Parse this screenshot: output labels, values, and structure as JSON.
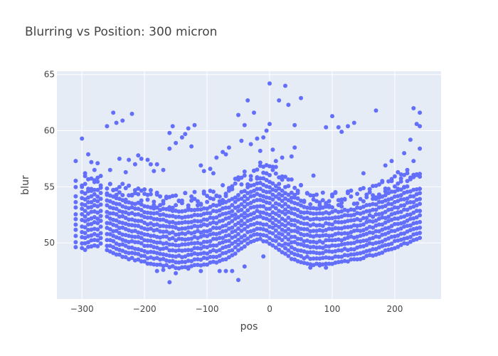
{
  "chart_data": {
    "type": "scatter",
    "title": "Blurring vs Position: 300 micron",
    "xlabel": "pos",
    "ylabel": "blur",
    "xlim": [
      -340,
      274
    ],
    "ylim": [
      45,
      65.3
    ],
    "x_ticks": [
      -300,
      -200,
      -100,
      0,
      100,
      200
    ],
    "x_tick_labels": [
      "−300",
      "−200",
      "−100",
      "0",
      "100",
      "200"
    ],
    "y_ticks": [
      50,
      55,
      60,
      65
    ],
    "y_tick_labels": [
      "50",
      "55",
      "60",
      "65"
    ],
    "grid": true,
    "legend": "none",
    "colors": {
      "marker": "#636efa",
      "plot_bg": "#e5ecf6",
      "grid": "#ffffff"
    },
    "x_positions": [
      -310,
      -300,
      -295,
      -290,
      -285,
      -280,
      -275,
      -270,
      -260,
      -255,
      -250,
      -245,
      -240,
      -235,
      -230,
      -225,
      -220,
      -215,
      -210,
      -205,
      -200,
      -195,
      -190,
      -185,
      -180,
      -175,
      -170,
      -165,
      -160,
      -155,
      -150,
      -145,
      -140,
      -135,
      -130,
      -125,
      -120,
      -115,
      -110,
      -105,
      -100,
      -95,
      -90,
      -85,
      -80,
      -75,
      -70,
      -65,
      -60,
      -55,
      -50,
      -45,
      -40,
      -35,
      -30,
      -25,
      -20,
      -15,
      -10,
      -5,
      0,
      5,
      10,
      15,
      20,
      25,
      30,
      35,
      40,
      45,
      50,
      55,
      60,
      65,
      70,
      75,
      80,
      85,
      90,
      95,
      100,
      105,
      110,
      115,
      120,
      125,
      130,
      135,
      140,
      145,
      150,
      155,
      160,
      165,
      170,
      175,
      180,
      185,
      190,
      195,
      200,
      205,
      210,
      215,
      220,
      225,
      230,
      235,
      240
    ],
    "band_low": [
      49.6,
      49.5,
      49.4,
      49.6,
      49.7,
      49.8,
      49.7,
      49.9,
      49.3,
      49.2,
      49.1,
      49.0,
      48.9,
      48.8,
      48.7,
      48.6,
      48.6,
      48.5,
      48.5,
      48.4,
      48.3,
      48.2,
      48.2,
      48.1,
      48.1,
      48.0,
      48.0,
      48.0,
      47.9,
      47.9,
      47.8,
      47.8,
      47.8,
      47.8,
      47.9,
      47.9,
      48.0,
      48.0,
      48.0,
      48.1,
      48.1,
      48.2,
      48.3,
      48.3,
      48.4,
      48.5,
      48.6,
      48.7,
      48.9,
      49.1,
      49.3,
      49.5,
      49.7,
      49.9,
      50.1,
      50.2,
      50.3,
      50.3,
      50.2,
      50.1,
      50.0,
      49.8,
      49.6,
      49.4,
      49.2,
      49.0,
      48.8,
      48.6,
      48.5,
      48.4,
      48.3,
      48.2,
      48.2,
      48.1,
      48.1,
      48.1,
      48.1,
      48.1,
      48.2,
      48.2,
      48.2,
      48.3,
      48.3,
      48.3,
      48.4,
      48.4,
      48.5,
      48.5,
      48.6,
      48.6,
      48.7,
      48.8,
      48.9,
      48.9,
      49.0,
      49.1,
      49.2,
      49.3,
      49.4,
      49.5,
      49.6,
      49.7,
      49.8,
      49.9,
      50.0,
      50.1,
      50.2,
      50.3,
      50.4
    ],
    "band_high": [
      54.5,
      54.6,
      54.6,
      54.7,
      54.8,
      54.8,
      54.9,
      55.0,
      54.4,
      54.3,
      54.2,
      54.1,
      54.0,
      53.9,
      53.8,
      53.8,
      53.7,
      53.6,
      53.6,
      53.5,
      53.5,
      53.4,
      53.4,
      53.3,
      53.3,
      53.2,
      53.2,
      53.2,
      53.1,
      53.1,
      53.1,
      53.1,
      53.1,
      53.1,
      53.1,
      53.1,
      53.2,
      53.2,
      53.3,
      53.3,
      53.4,
      53.4,
      53.5,
      53.6,
      53.7,
      53.8,
      53.9,
      54.0,
      54.2,
      54.4,
      54.6,
      54.8,
      55.0,
      55.2,
      55.4,
      55.6,
      55.8,
      55.9,
      56.0,
      55.9,
      55.8,
      55.6,
      55.4,
      55.2,
      55.0,
      54.8,
      54.6,
      54.4,
      54.2,
      54.0,
      53.8,
      53.6,
      53.5,
      53.4,
      53.3,
      53.2,
      53.2,
      53.2,
      53.2,
      53.2,
      53.2,
      53.2,
      53.2,
      53.3,
      53.3,
      53.3,
      53.4,
      53.4,
      53.5,
      53.5,
      53.6,
      53.7,
      53.8,
      53.9,
      54.0,
      54.1,
      54.2,
      54.3,
      54.4,
      54.5,
      54.6,
      54.7,
      54.8,
      54.9,
      55.0,
      55.0,
      55.0,
      55.0,
      55.0
    ],
    "band_spacing": 0.5,
    "outlier_points": [
      [
        -310,
        57.3
      ],
      [
        -300,
        59.3
      ],
      [
        -290,
        57.9
      ],
      [
        -285,
        57.2
      ],
      [
        -280,
        56.5
      ],
      [
        -275,
        57.1
      ],
      [
        -295,
        56.2
      ],
      [
        -260,
        60.4
      ],
      [
        -255,
        56.5
      ],
      [
        -250,
        61.6
      ],
      [
        -245,
        60.7
      ],
      [
        -240,
        57.5
      ],
      [
        -235,
        60.9
      ],
      [
        -230,
        56.3
      ],
      [
        -225,
        57.4
      ],
      [
        -220,
        61.5
      ],
      [
        -215,
        57.0
      ],
      [
        -210,
        57.8
      ],
      [
        -205,
        57.5
      ],
      [
        -195,
        57.4
      ],
      [
        -190,
        57.0
      ],
      [
        -185,
        56.4
      ],
      [
        -180,
        57.0
      ],
      [
        -170,
        56.5
      ],
      [
        -160,
        59.8
      ],
      [
        -160,
        58.4
      ],
      [
        -155,
        60.4
      ],
      [
        -150,
        58.9
      ],
      [
        -140,
        59.4
      ],
      [
        -135,
        59.7
      ],
      [
        -130,
        60.2
      ],
      [
        -125,
        58.6
      ],
      [
        -120,
        60.5
      ],
      [
        -110,
        56.9
      ],
      [
        -105,
        56.4
      ],
      [
        -95,
        56.6
      ],
      [
        -90,
        56.2
      ],
      [
        -85,
        57.6
      ],
      [
        -75,
        58.1
      ],
      [
        -70,
        57.9
      ],
      [
        -65,
        58.5
      ],
      [
        -50,
        61.4
      ],
      [
        -45,
        59.1
      ],
      [
        -40,
        60.5
      ],
      [
        -35,
        62.7
      ],
      [
        -30,
        58.8
      ],
      [
        -25,
        61.6
      ],
      [
        -20,
        59.3
      ],
      [
        -15,
        58.2
      ],
      [
        -10,
        59.4
      ],
      [
        -5,
        60.0
      ],
      [
        0,
        64.2
      ],
      [
        0,
        60.6
      ],
      [
        5,
        58.3
      ],
      [
        10,
        57.3
      ],
      [
        15,
        62.7
      ],
      [
        20,
        57.6
      ],
      [
        25,
        64.0
      ],
      [
        30,
        62.3
      ],
      [
        35,
        57.7
      ],
      [
        40,
        58.5
      ],
      [
        40,
        60.5
      ],
      [
        50,
        62.9
      ],
      [
        70,
        56.0
      ],
      [
        90,
        60.3
      ],
      [
        100,
        61.3
      ],
      [
        110,
        60.3
      ],
      [
        115,
        59.9
      ],
      [
        125,
        60.4
      ],
      [
        135,
        60.7
      ],
      [
        150,
        56.2
      ],
      [
        170,
        61.8
      ],
      [
        185,
        56.9
      ],
      [
        195,
        57.3
      ],
      [
        205,
        56.3
      ],
      [
        215,
        58.0
      ],
      [
        220,
        56.5
      ],
      [
        225,
        59.2
      ],
      [
        230,
        62.0
      ],
      [
        235,
        60.6
      ],
      [
        240,
        61.6
      ],
      [
        240,
        60.4
      ],
      [
        240,
        58.4
      ],
      [
        230,
        57.3
      ],
      [
        210,
        56.1
      ]
    ],
    "low_outliers": [
      [
        -180,
        47.5
      ],
      [
        -170,
        47.6
      ],
      [
        -160,
        46.5
      ],
      [
        -150,
        47.3
      ],
      [
        -130,
        47.7
      ],
      [
        -110,
        47.5
      ],
      [
        -80,
        47.5
      ],
      [
        -70,
        47.5
      ],
      [
        -60,
        47.5
      ],
      [
        -50,
        46.7
      ],
      [
        -40,
        47.9
      ],
      [
        -10,
        48.8
      ],
      [
        65,
        47.8
      ],
      [
        80,
        48.0
      ],
      [
        90,
        47.8
      ]
    ]
  }
}
